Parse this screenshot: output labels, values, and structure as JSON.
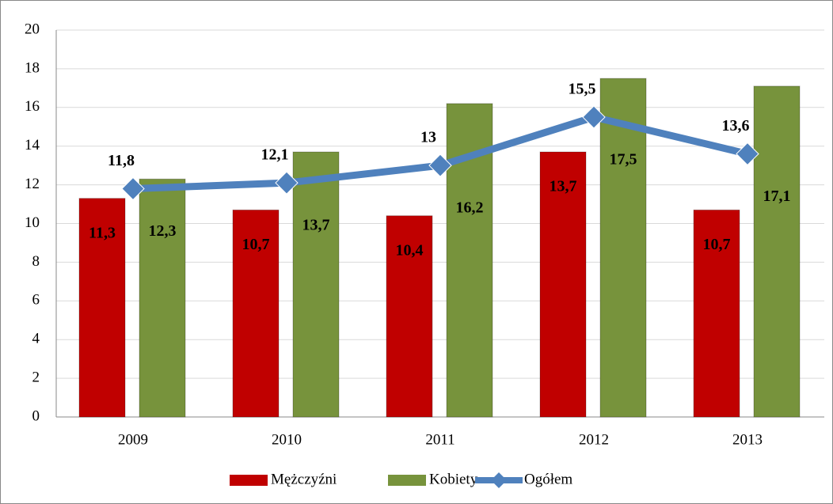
{
  "chart_data": {
    "type": "bar",
    "categories": [
      "2009",
      "2010",
      "2011",
      "2012",
      "2013"
    ],
    "series": [
      {
        "name": "Mężczyźni",
        "color": "#c00000",
        "values": [
          11.3,
          10.7,
          10.4,
          13.7,
          10.7
        ],
        "value_labels": [
          "11,3",
          "10,7",
          "10,4",
          "13,7",
          "10,7"
        ]
      },
      {
        "name": "Kobiety",
        "color": "#77933c",
        "values": [
          12.3,
          13.7,
          16.2,
          17.5,
          17.1
        ],
        "value_labels": [
          "12,3",
          "13,7",
          "16,2",
          "17,5",
          "17,1"
        ]
      },
      {
        "name": "Ogółem",
        "type": "line",
        "color": "#4f81bd",
        "values": [
          11.8,
          12.1,
          13,
          15.5,
          13.6
        ],
        "value_labels": [
          "11,8",
          "12,1",
          "13",
          "15,5",
          "13,6"
        ]
      }
    ],
    "ylim": [
      0,
      20
    ],
    "yticks": [
      0,
      2,
      4,
      6,
      8,
      10,
      12,
      14,
      16,
      18,
      20
    ],
    "grid": true,
    "legend": "bottom"
  }
}
